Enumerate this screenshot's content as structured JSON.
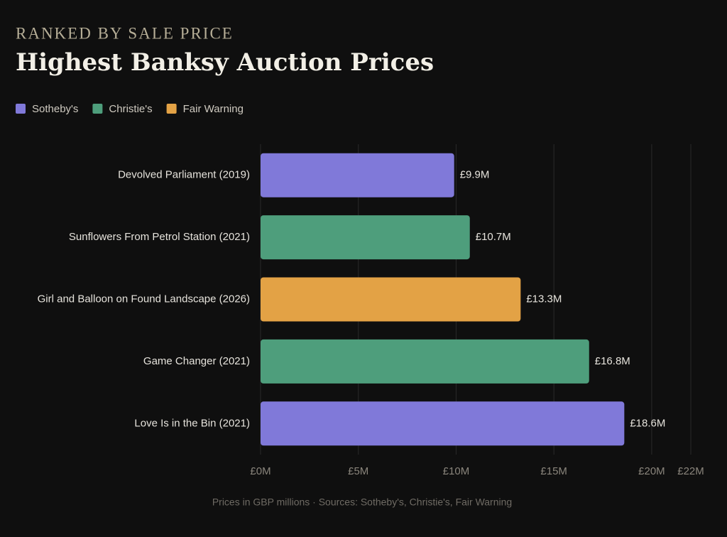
{
  "chart_data": {
    "type": "hbar",
    "subtitle": "RANKED BY SALE PRICE",
    "title": "Highest Banksy Auction Prices",
    "legend": [
      {
        "name": "Sotheby's",
        "color": "#8079d9"
      },
      {
        "name": "Christie's",
        "color": "#4e9e7c"
      },
      {
        "name": "Fair Warning",
        "color": "#e3a245"
      }
    ],
    "categories": [
      "Devolved Parliament (2019)",
      "Sunflowers From Petrol Station (2021)",
      "Girl and Balloon on Found Landscape (2026)",
      "Game Changer (2021)",
      "Love Is in the Bin (2021)"
    ],
    "values": [
      9.9,
      10.7,
      13.3,
      16.8,
      18.6
    ],
    "value_labels": [
      "£9.9M",
      "£10.7M",
      "£13.3M",
      "£16.8M",
      "£18.6M"
    ],
    "colors": [
      "#8079d9",
      "#4e9e7c",
      "#e3a245",
      "#4e9e7c",
      "#8079d9"
    ],
    "xlim": [
      0,
      22
    ],
    "xticks": [
      {
        "value": 0,
        "label": "£0M"
      },
      {
        "value": 5,
        "label": "£5M"
      },
      {
        "value": 10,
        "label": "£10M"
      },
      {
        "value": 15,
        "label": "£15M"
      },
      {
        "value": 20,
        "label": "£20M"
      },
      {
        "value": 22,
        "label": "£22M"
      }
    ],
    "grid": true,
    "footnote": "Prices in GBP millions · Sources: Sotheby's, Christie's, Fair Warning"
  }
}
